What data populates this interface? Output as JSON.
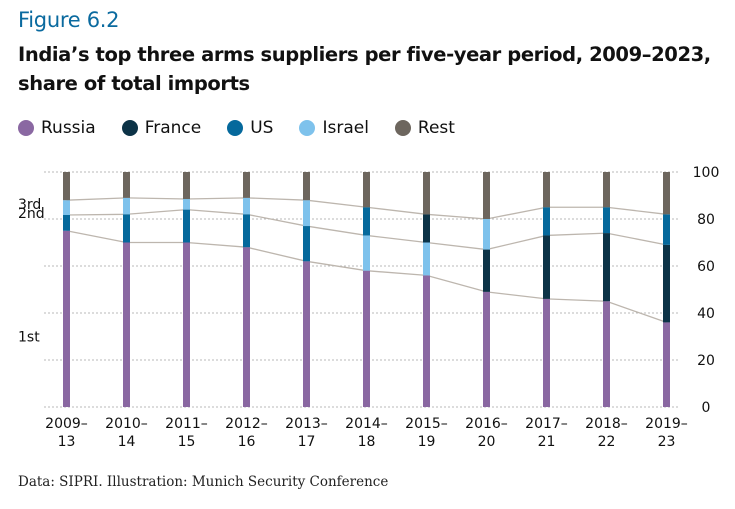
{
  "figure_label": "Figure 6.2",
  "title_line1": "India’s top three arms suppliers per five-year period, 2009–2023,",
  "title_line2": "share of total imports",
  "source": "Data: SIPRI. Illustration: Munich Security Conference",
  "legend": [
    {
      "name": "Russia",
      "color": "#8a68a2"
    },
    {
      "name": "France",
      "color": "#0c3347"
    },
    {
      "name": "US",
      "color": "#05699c"
    },
    {
      "name": "Israel",
      "color": "#7ec2ec"
    },
    {
      "name": "Rest",
      "color": "#6d665e"
    }
  ],
  "chart_data": {
    "type": "bar",
    "stacked": true,
    "title": "India’s top three arms suppliers per five-year period, 2009–2023, share of total imports",
    "xlabel": "",
    "ylabel": "",
    "ylim": [
      0,
      100
    ],
    "yticks": [
      0,
      20,
      40,
      60,
      80,
      100
    ],
    "y_axis_side": "right",
    "grid": true,
    "rank_labels": [
      "1st",
      "2nd",
      "3rd"
    ],
    "categories": [
      [
        "2009–",
        "13"
      ],
      [
        "2010–",
        "14"
      ],
      [
        "2011–",
        "15"
      ],
      [
        "2012–",
        "16"
      ],
      [
        "2013–",
        "17"
      ],
      [
        "2014–",
        "18"
      ],
      [
        "2015–",
        "19"
      ],
      [
        "2016–",
        "20"
      ],
      [
        "2017–",
        "21"
      ],
      [
        "2018–",
        "22"
      ],
      [
        "2019–",
        "23"
      ]
    ],
    "stacks": [
      [
        {
          "s": "Russia",
          "v": 75
        },
        {
          "s": "US",
          "v": 6.7
        },
        {
          "s": "Israel",
          "v": 6.3
        },
        {
          "s": "Rest",
          "v": 12
        }
      ],
      [
        {
          "s": "Russia",
          "v": 70
        },
        {
          "s": "US",
          "v": 12
        },
        {
          "s": "Israel",
          "v": 7
        },
        {
          "s": "Rest",
          "v": 11
        }
      ],
      [
        {
          "s": "Russia",
          "v": 70
        },
        {
          "s": "US",
          "v": 14
        },
        {
          "s": "Israel",
          "v": 4.5
        },
        {
          "s": "Rest",
          "v": 11.5
        }
      ],
      [
        {
          "s": "Russia",
          "v": 68
        },
        {
          "s": "US",
          "v": 14
        },
        {
          "s": "Israel",
          "v": 7
        },
        {
          "s": "Rest",
          "v": 11
        }
      ],
      [
        {
          "s": "Russia",
          "v": 62
        },
        {
          "s": "US",
          "v": 15
        },
        {
          "s": "Israel",
          "v": 11
        },
        {
          "s": "Rest",
          "v": 12
        }
      ],
      [
        {
          "s": "Russia",
          "v": 58
        },
        {
          "s": "Israel",
          "v": 15
        },
        {
          "s": "US",
          "v": 12
        },
        {
          "s": "Rest",
          "v": 15
        }
      ],
      [
        {
          "s": "Russia",
          "v": 56
        },
        {
          "s": "Israel",
          "v": 14
        },
        {
          "s": "France",
          "v": 12
        },
        {
          "s": "Rest",
          "v": 18
        }
      ],
      [
        {
          "s": "Russia",
          "v": 49
        },
        {
          "s": "France",
          "v": 18
        },
        {
          "s": "Israel",
          "v": 13
        },
        {
          "s": "Rest",
          "v": 20
        }
      ],
      [
        {
          "s": "Russia",
          "v": 46
        },
        {
          "s": "France",
          "v": 27
        },
        {
          "s": "US",
          "v": 12
        },
        {
          "s": "Rest",
          "v": 15
        }
      ],
      [
        {
          "s": "Russia",
          "v": 45
        },
        {
          "s": "France",
          "v": 29
        },
        {
          "s": "US",
          "v": 11
        },
        {
          "s": "Rest",
          "v": 15
        }
      ],
      [
        {
          "s": "Russia",
          "v": 36
        },
        {
          "s": "France",
          "v": 33
        },
        {
          "s": "US",
          "v": 13
        },
        {
          "s": "Rest",
          "v": 18
        }
      ]
    ]
  }
}
